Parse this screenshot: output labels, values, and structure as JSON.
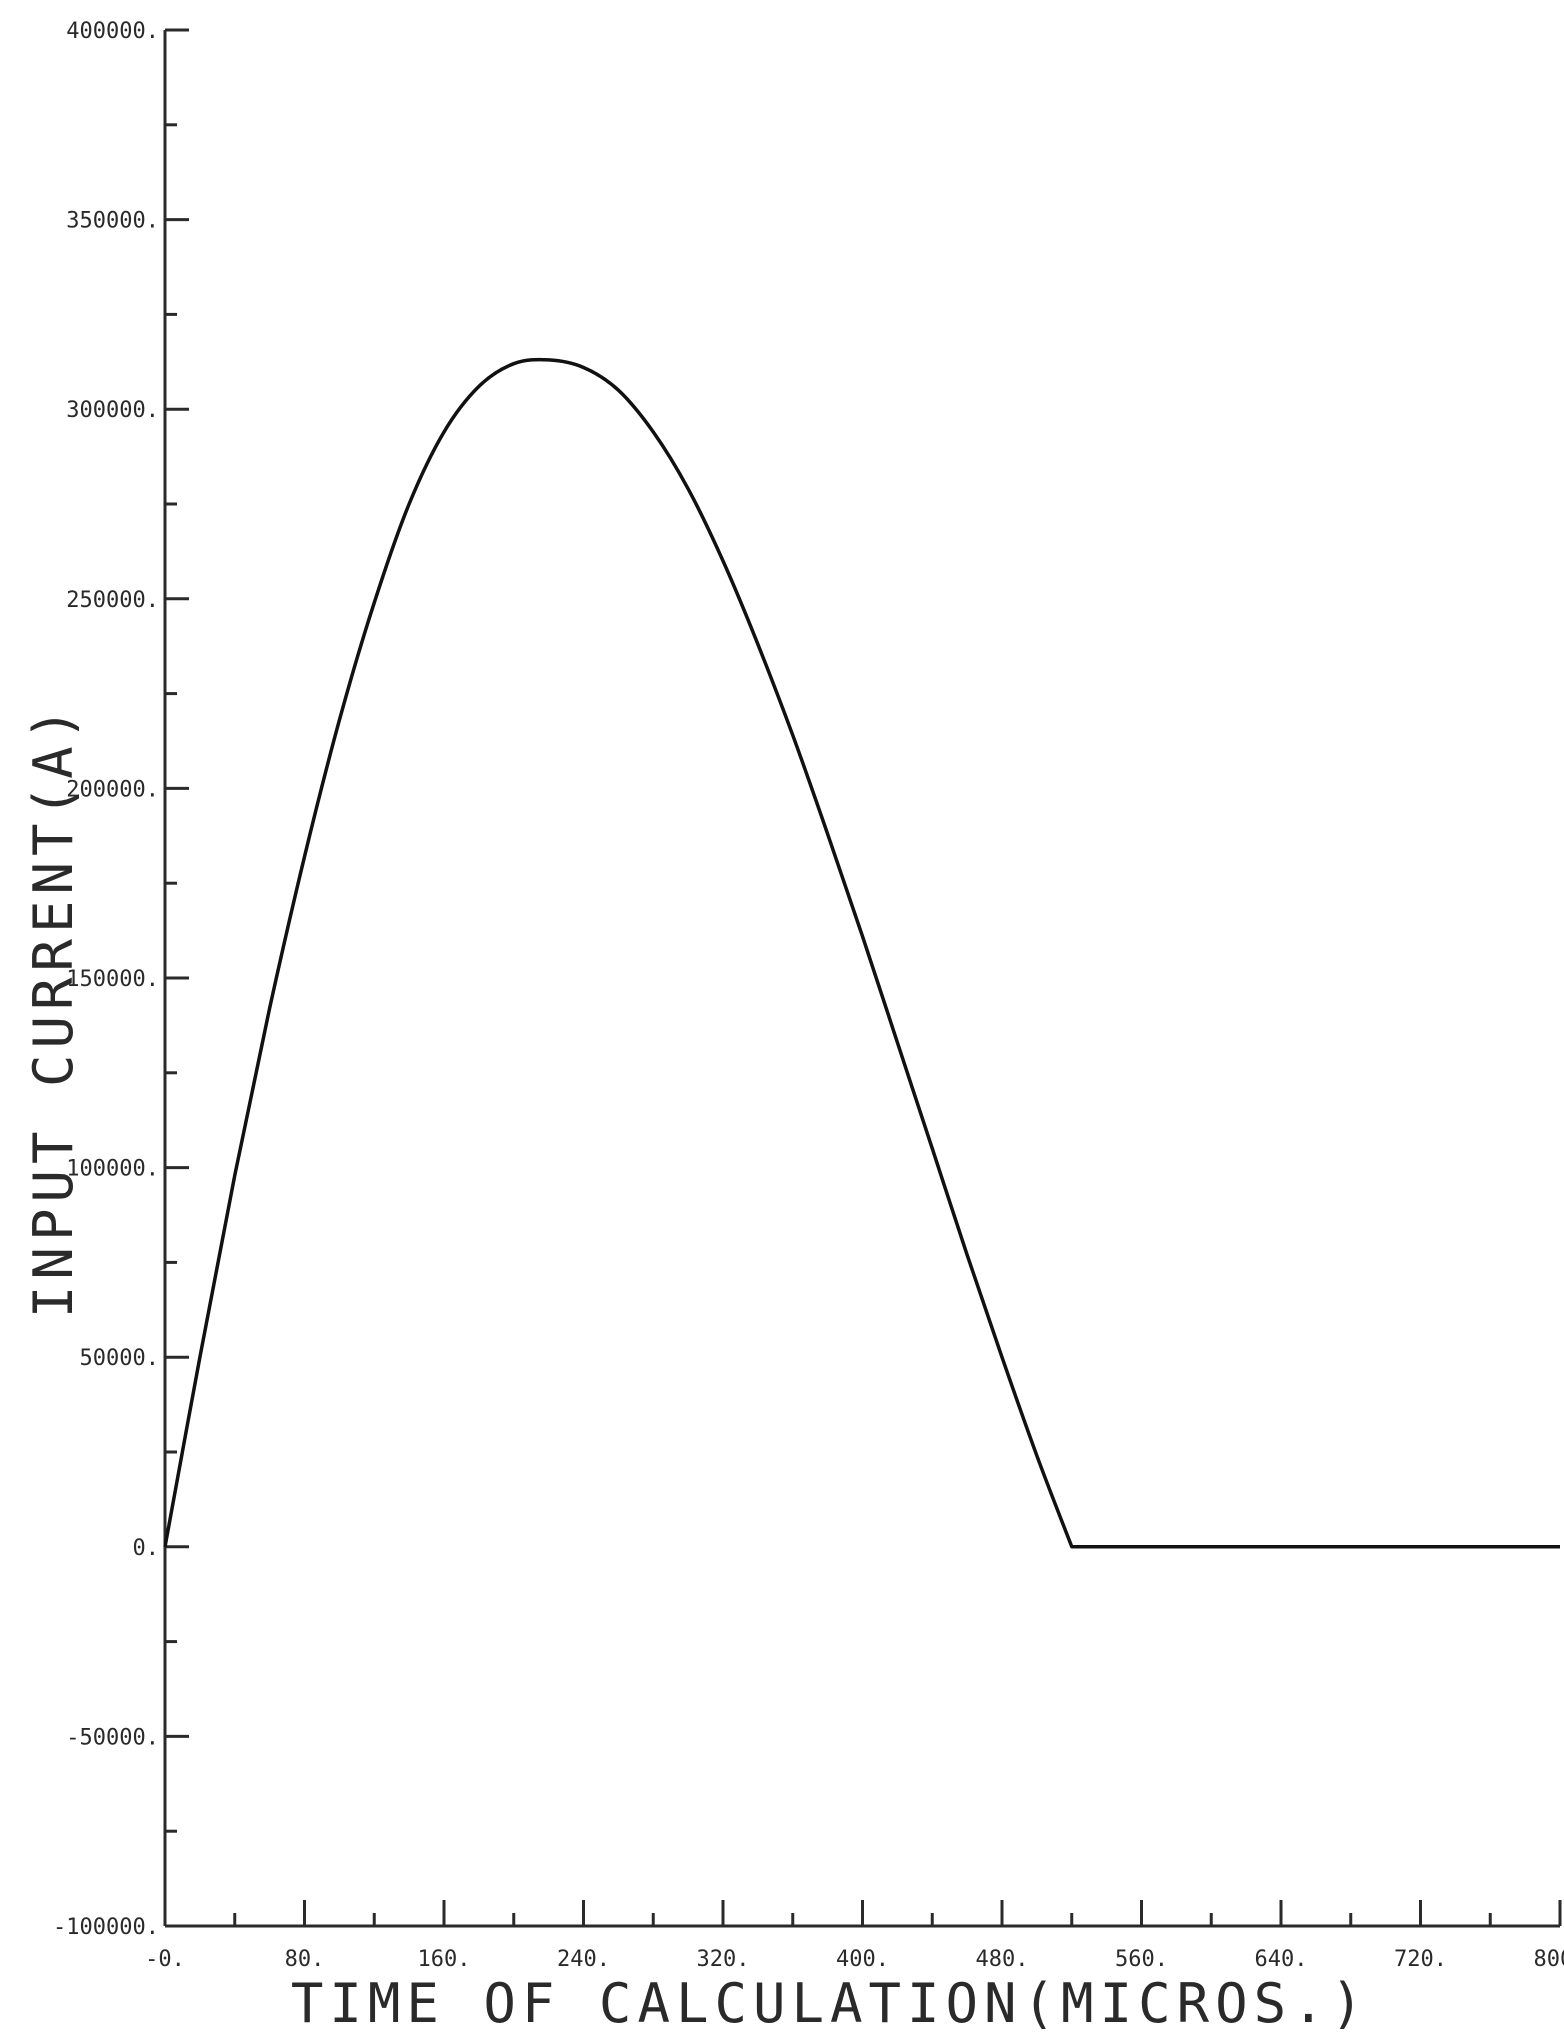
{
  "chart_data": {
    "type": "line",
    "title": "",
    "xlabel": "TIME OF CALCULATION(MICROS.)",
    "ylabel": "INPUT CURRENT(A)",
    "xlim": [
      0,
      800
    ],
    "ylim": [
      -100000,
      400000
    ],
    "grid": false,
    "x_ticks": [
      0,
      80,
      160,
      240,
      320,
      400,
      480,
      560,
      640,
      720,
      800
    ],
    "x_tick_labels": [
      "-0.",
      "80.",
      "160.",
      "240.",
      "320.",
      "400.",
      "480.",
      "560.",
      "640.",
      "720.",
      "800."
    ],
    "y_ticks": [
      -100000,
      -50000,
      0,
      50000,
      100000,
      150000,
      200000,
      250000,
      300000,
      350000,
      400000
    ],
    "y_tick_labels": [
      "-100000.",
      "-50000.",
      "0.",
      "50000.",
      "100000.",
      "150000.",
      "200000.",
      "250000.",
      "300000.",
      "350000.",
      "400000."
    ],
    "series": [
      {
        "x": [
          0,
          20,
          40,
          60,
          80,
          100,
          120,
          140,
          160,
          180,
          200,
          220,
          240,
          260,
          280,
          300,
          320,
          340,
          360,
          380,
          400,
          420,
          440,
          460,
          480,
          500,
          520,
          540,
          560,
          580,
          600,
          620,
          640,
          660,
          680,
          700,
          720,
          740,
          760,
          780,
          800
        ],
        "values": [
          0,
          50000,
          98000,
          142000,
          182000,
          218000,
          249000,
          275000,
          294000,
          306000,
          312000,
          313000,
          311000,
          305000,
          294000,
          279000,
          260000,
          238000,
          214000,
          188000,
          161000,
          133000,
          105000,
          77000,
          50000,
          24000,
          0,
          0,
          0,
          0,
          0,
          0,
          0,
          0,
          0,
          0,
          0,
          0,
          0,
          0,
          0
        ]
      }
    ]
  }
}
